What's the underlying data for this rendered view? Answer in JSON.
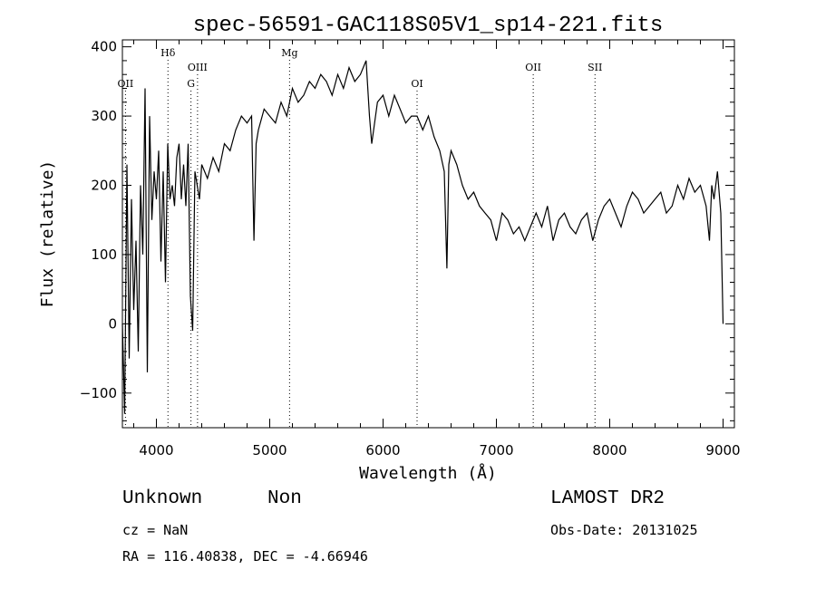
{
  "chart_data": {
    "type": "line",
    "title": "spec-56591-GAC118S05V1_sp14-221.fits",
    "xlabel": "Wavelength (Å)",
    "ylabel": "Flux (relative)",
    "xlim": [
      3700,
      9100
    ],
    "ylim": [
      -150,
      410
    ],
    "xticks": [
      4000,
      5000,
      6000,
      7000,
      8000,
      9000
    ],
    "yticks": [
      -100,
      0,
      100,
      200,
      300,
      400
    ],
    "grid": false,
    "lines": [
      {
        "label": "OII",
        "x": 3727,
        "row": 2
      },
      {
        "label": "Hδ",
        "x": 4102,
        "row": 0
      },
      {
        "label": "OIII",
        "x": 4363,
        "row": 1
      },
      {
        "label": "G",
        "x": 4305,
        "row": 2
      },
      {
        "label": "Mg",
        "x": 5175,
        "row": 0
      },
      {
        "label": "OI",
        "x": 6300,
        "row": 2
      },
      {
        "label": "OII",
        "x": 7325,
        "row": 1
      },
      {
        "label": "SII",
        "x": 7870,
        "row": 1
      }
    ],
    "series": [
      {
        "x": [
          3700,
          3720,
          3740,
          3760,
          3780,
          3800,
          3820,
          3840,
          3860,
          3880,
          3900,
          3920,
          3940,
          3960,
          3980,
          4000,
          4020,
          4040,
          4060,
          4080,
          4100,
          4120,
          4140,
          4160,
          4180,
          4200,
          4220,
          4240,
          4260,
          4280,
          4300,
          4320,
          4340,
          4360,
          4380,
          4400,
          4450,
          4500,
          4550,
          4600,
          4650,
          4700,
          4750,
          4800,
          4840,
          4861,
          4880,
          4900,
          4950,
          5000,
          5050,
          5100,
          5150,
          5200,
          5250,
          5300,
          5350,
          5400,
          5450,
          5500,
          5550,
          5600,
          5650,
          5700,
          5750,
          5800,
          5850,
          5880,
          5900,
          5950,
          6000,
          6050,
          6100,
          6150,
          6200,
          6250,
          6300,
          6350,
          6400,
          6450,
          6500,
          6540,
          6563,
          6580,
          6600,
          6650,
          6700,
          6750,
          6800,
          6850,
          6900,
          6950,
          7000,
          7050,
          7100,
          7150,
          7200,
          7250,
          7300,
          7350,
          7400,
          7450,
          7500,
          7550,
          7600,
          7650,
          7700,
          7750,
          7800,
          7850,
          7900,
          7950,
          8000,
          8050,
          8100,
          8150,
          8200,
          8250,
          8300,
          8350,
          8400,
          8450,
          8500,
          8550,
          8600,
          8650,
          8700,
          8750,
          8800,
          8850,
          8880,
          8900,
          8920,
          8950,
          8980,
          9000
        ],
        "y": [
          0,
          -130,
          230,
          -50,
          180,
          20,
          120,
          -40,
          200,
          100,
          340,
          -70,
          300,
          150,
          220,
          180,
          250,
          90,
          220,
          60,
          260,
          180,
          200,
          170,
          240,
          260,
          180,
          230,
          170,
          260,
          40,
          -10,
          220,
          200,
          180,
          230,
          210,
          240,
          220,
          260,
          250,
          280,
          300,
          290,
          300,
          120,
          260,
          280,
          310,
          300,
          290,
          320,
          300,
          340,
          320,
          330,
          350,
          340,
          360,
          350,
          330,
          360,
          340,
          370,
          350,
          360,
          380,
          300,
          260,
          320,
          330,
          300,
          330,
          310,
          290,
          300,
          300,
          280,
          300,
          270,
          250,
          220,
          80,
          230,
          250,
          230,
          200,
          180,
          190,
          170,
          160,
          150,
          120,
          160,
          150,
          130,
          140,
          120,
          140,
          160,
          140,
          170,
          120,
          150,
          160,
          140,
          130,
          150,
          160,
          120,
          150,
          170,
          180,
          160,
          140,
          170,
          190,
          180,
          160,
          170,
          180,
          190,
          160,
          170,
          200,
          180,
          210,
          190,
          200,
          170,
          120,
          200,
          180,
          220,
          160,
          0
        ]
      }
    ]
  },
  "info": {
    "class": "Unknown",
    "subclass": "Non",
    "survey": "LAMOST DR2",
    "cz": "cz = NaN",
    "obs_date": "Obs-Date: 20131025",
    "radec": "RA = 116.40838, DEC =  -4.66946"
  }
}
